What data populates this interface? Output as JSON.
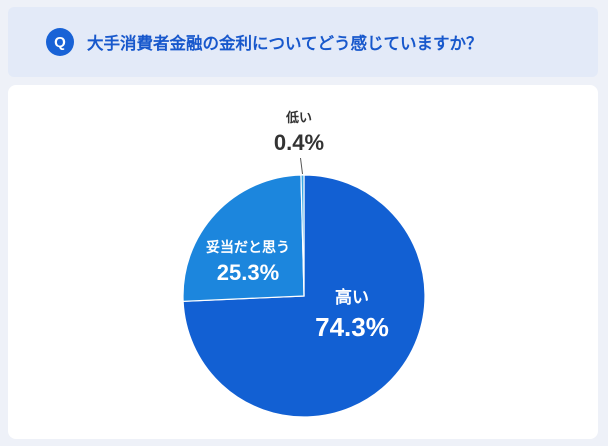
{
  "question": {
    "badge": "Q",
    "text": "大手消費者金融の金利についてどう感じていますか？"
  },
  "colors": {
    "high": "#1260d3",
    "fair": "#1c86dd",
    "low": "#3aa8e4",
    "accent": "#1862d6"
  },
  "chart_data": {
    "type": "pie",
    "slices": [
      {
        "label": "高い",
        "value": 74.3,
        "display": "74.3%"
      },
      {
        "label": "妥当だと思う",
        "value": 25.3,
        "display": "25.3%"
      },
      {
        "label": "低い",
        "value": 0.4,
        "display": "0.4%"
      }
    ]
  }
}
